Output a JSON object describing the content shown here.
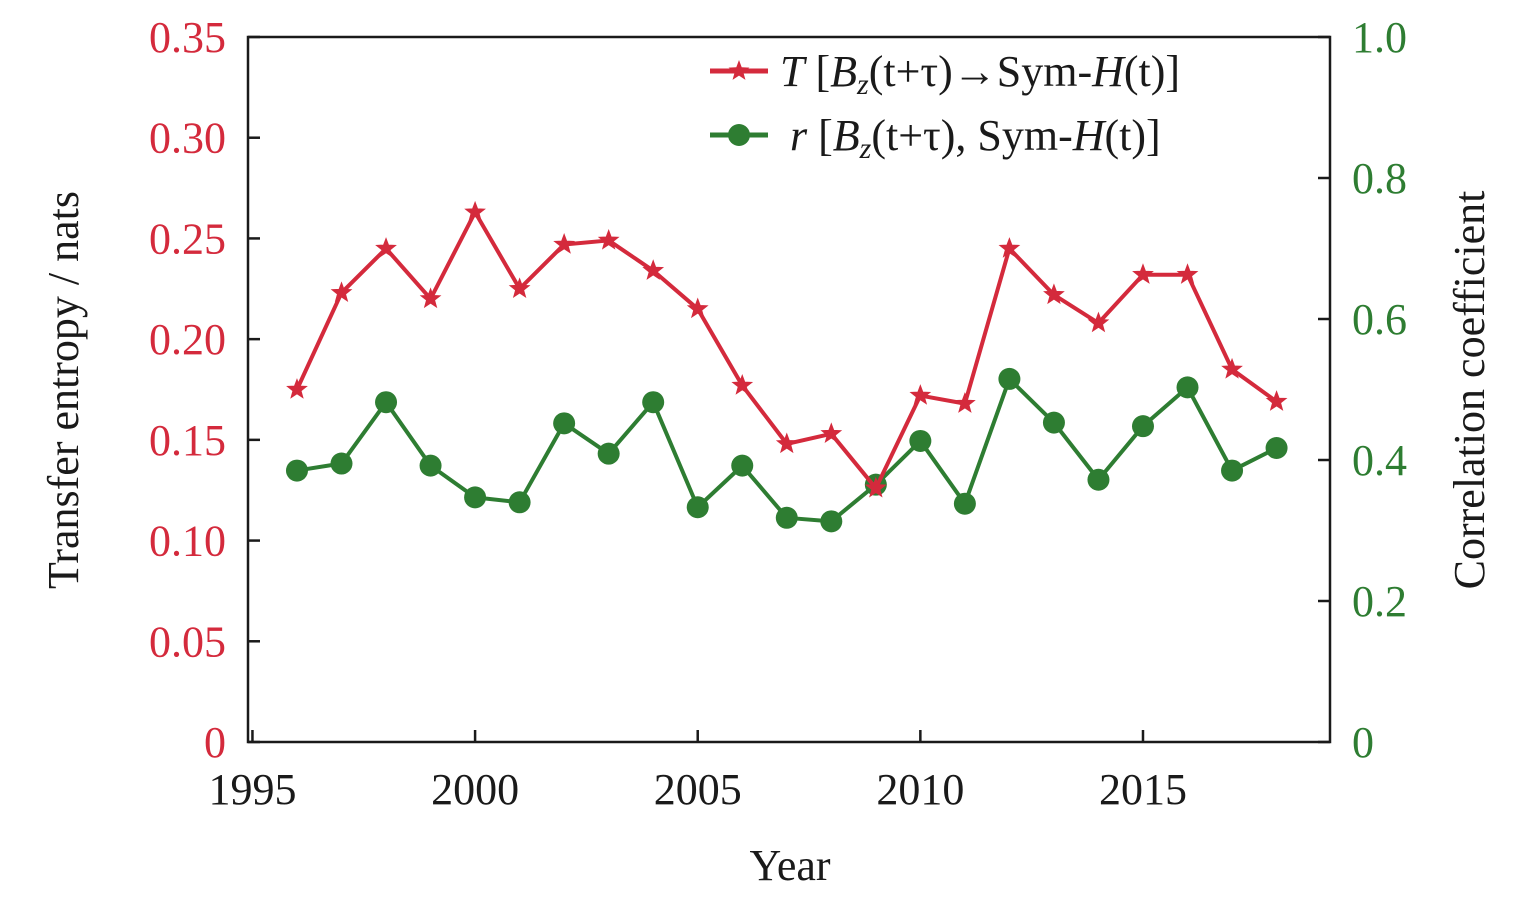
{
  "chart_data": {
    "type": "line",
    "xlabel": "Year",
    "ylabel_left": "Transfer entropy / nats",
    "ylabel_right": "Correlation coefficient",
    "xlim": [
      1994.9,
      2019.2
    ],
    "ylim_left": [
      0,
      0.35
    ],
    "ylim_right": [
      0,
      1.0
    ],
    "x_ticks": [
      1995,
      2000,
      2005,
      2010,
      2015
    ],
    "x_tick_labels": [
      "1995",
      "2000",
      "2005",
      "2010",
      "2015"
    ],
    "y_left_ticks": [
      0,
      0.05,
      0.1,
      0.15,
      0.2,
      0.25,
      0.3,
      0.35
    ],
    "y_left_tick_labels": [
      "0",
      "0.05",
      "0.10",
      "0.15",
      "0.20",
      "0.25",
      "0.30",
      "0.35"
    ],
    "y_right_ticks": [
      0,
      0.2,
      0.4,
      0.6,
      0.8,
      1.0
    ],
    "y_right_tick_labels": [
      "0",
      "0.2",
      "0.4",
      "0.6",
      "0.8",
      "1.0"
    ],
    "grid": false,
    "legend_position": "top-right",
    "x": [
      1996,
      1997,
      1998,
      1999,
      2000,
      2001,
      2002,
      2003,
      2004,
      2005,
      2006,
      2007,
      2008,
      2009,
      2010,
      2011,
      2012,
      2013,
      2014,
      2015,
      2016,
      2017,
      2018
    ],
    "series": [
      {
        "name": "T [Bz(t+τ)→Sym-H(t)]",
        "axis": "left",
        "color": "#d42a3c",
        "marker": "star",
        "values": [
          0.175,
          0.223,
          0.245,
          0.22,
          0.263,
          0.225,
          0.247,
          0.249,
          0.234,
          0.215,
          0.177,
          0.148,
          0.153,
          0.126,
          0.172,
          0.168,
          0.245,
          0.222,
          0.208,
          0.232,
          0.232,
          0.185,
          0.169
        ]
      },
      {
        "name": "r [Bz(t+τ), Sym-H(t)]",
        "axis": "right",
        "color": "#2e7d32",
        "marker": "circle",
        "values": [
          0.385,
          0.395,
          0.482,
          0.392,
          0.347,
          0.34,
          0.452,
          0.409,
          0.482,
          0.333,
          0.392,
          0.318,
          0.313,
          0.365,
          0.427,
          0.338,
          0.515,
          0.453,
          0.372,
          0.448,
          0.503,
          0.385,
          0.417
        ]
      }
    ]
  },
  "legend": {
    "t": {
      "symbol": "T",
      "open": "[",
      "b": "B",
      "sub": "z",
      "mid": "(t+τ)→Sym-",
      "h": "H",
      "close": "(t)]"
    },
    "r": {
      "symbol": "r",
      "open": "[",
      "b": "B",
      "sub": "z",
      "mid": "(t+τ), Sym-",
      "h": "H",
      "close": "(t)]"
    }
  },
  "colors": {
    "left_axis": "#d42a3c",
    "right_axis": "#2e7d32",
    "frame": "#1a1a1a"
  }
}
